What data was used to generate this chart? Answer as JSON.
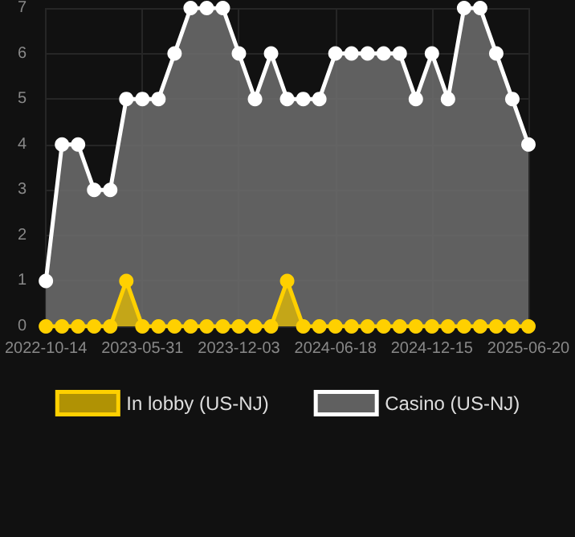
{
  "chart_data": {
    "type": "area",
    "categories": [
      "2022-10-14",
      null,
      null,
      null,
      null,
      null,
      "2023-05-31",
      null,
      null,
      null,
      null,
      null,
      "2023-12-03",
      null,
      null,
      null,
      null,
      null,
      "2024-06-18",
      null,
      null,
      null,
      null,
      null,
      "2024-12-15",
      null,
      null,
      null,
      null,
      null,
      "2025-06-20"
    ],
    "series": [
      {
        "name": "In lobby (US-NJ)",
        "color": "#ffd000",
        "values": [
          0,
          0,
          0,
          0,
          0,
          1,
          0,
          0,
          0,
          0,
          0,
          0,
          0,
          0,
          0,
          1,
          0,
          0,
          0,
          0,
          0,
          0,
          0,
          0,
          0,
          0,
          0,
          0,
          0,
          0,
          0
        ]
      },
      {
        "name": "Casino (US-NJ)",
        "color": "#ffffff",
        "values": [
          1,
          4,
          4,
          3,
          3,
          5,
          5,
          5,
          6,
          7,
          7,
          7,
          6,
          5,
          6,
          5,
          5,
          5,
          6,
          6,
          6,
          6,
          6,
          5,
          6,
          5,
          7,
          7,
          6,
          5,
          4
        ]
      }
    ],
    "ylim": [
      0,
      7
    ],
    "yticks": [
      0,
      1,
      2,
      3,
      4,
      5,
      6,
      7
    ],
    "grid": true,
    "legend": "bottom",
    "marker": "circle"
  }
}
